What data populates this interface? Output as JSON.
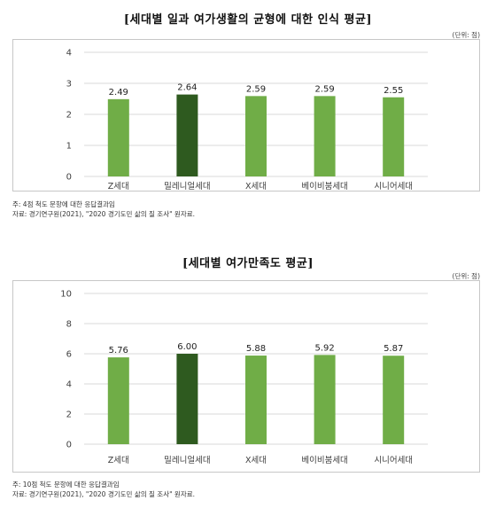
{
  "colors": {
    "bar": "#70ad47",
    "highlight_bar": "#2e5a1f",
    "grid": "#d9d9d9",
    "axis_text": "#404040"
  },
  "chart_data": [
    {
      "type": "bar",
      "title": "[세대별 일과 여가생활의 균형에 대한 인식 평균]",
      "unit": "(단위: 점)",
      "categories": [
        "Z세대",
        "밀레니얼세대",
        "X세대",
        "베이비붐세대",
        "시니어세대"
      ],
      "values": [
        2.49,
        2.64,
        2.59,
        2.59,
        2.55
      ],
      "value_labels": [
        "2.49",
        "2.64",
        "2.59",
        "2.59",
        "2.55"
      ],
      "highlight_index": 1,
      "ylim": [
        0,
        4
      ],
      "yticks": [
        "0",
        "1",
        "2",
        "3",
        "4"
      ],
      "grid": true,
      "xlabel": "",
      "ylabel": "",
      "notes": [
        "주: 4점 척도 문항에 대한 응답결과임",
        "자료: 경기연구원(2021), \"2020 경기도민 삶의 질 조사\" 원자료."
      ]
    },
    {
      "type": "bar",
      "title": "[세대별 여가만족도 평균]",
      "unit": "(단위: 점)",
      "categories": [
        "Z세대",
        "밀레니얼세대",
        "X세대",
        "베이비붐세대",
        "시니어세대"
      ],
      "values": [
        5.76,
        6.0,
        5.88,
        5.92,
        5.87
      ],
      "value_labels": [
        "5.76",
        "6.00",
        "5.88",
        "5.92",
        "5.87"
      ],
      "highlight_index": 1,
      "ylim": [
        0,
        10
      ],
      "yticks": [
        "0",
        "2",
        "4",
        "6",
        "8",
        "10"
      ],
      "grid": true,
      "xlabel": "",
      "ylabel": "",
      "notes": [
        "주: 10점 척도 문항에 대한 응답결과임",
        "자료: 경기연구원(2021), \"2020 경기도민 삶의 질 조사\" 원자료."
      ]
    }
  ]
}
